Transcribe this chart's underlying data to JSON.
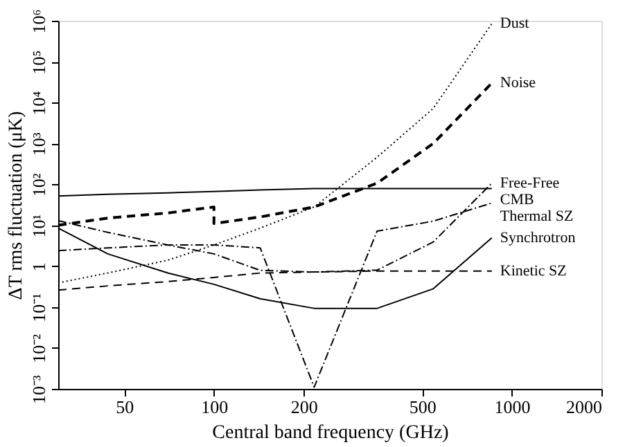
{
  "chart_data": {
    "type": "line",
    "xlabel": "Central band frequency (GHz)",
    "ylabel": "ΔT rms fluctuation (μK)",
    "log": "xy",
    "xlim": [
      30,
      2000
    ],
    "xticks": [
      50,
      100,
      200,
      500,
      1000,
      2000
    ],
    "ylim": [
      0.001,
      1000000
    ],
    "yticks": [
      {
        "value": 0.001,
        "label": "10⁻³"
      },
      {
        "value": 0.01,
        "label": "10⁻²"
      },
      {
        "value": 0.1,
        "label": "10⁻¹"
      },
      1,
      {
        "value": 10,
        "label": "10¹"
      },
      {
        "value": 100,
        "label": "10²"
      },
      {
        "value": 1000,
        "label": "10³"
      },
      {
        "value": 10000,
        "label": "10⁴"
      },
      {
        "value": 100000,
        "label": "10⁵"
      },
      {
        "value": 1000000,
        "label": "10⁶"
      }
    ],
    "grid": false,
    "marker": "none",
    "series": [
      {
        "name": "Dust",
        "color": "#000000",
        "line_style": "dotted",
        "x": [
          30,
          44,
          70,
          100,
          143,
          217,
          353,
          545,
          857
        ],
        "values": [
          0.39,
          0.68,
          1.4,
          3.3,
          8.5,
          28,
          460,
          7200,
          850000
        ]
      },
      {
        "name": "Noise",
        "color": "#000000",
        "line_style": "dashed",
        "x": [
          30,
          44,
          70,
          100,
          100,
          143,
          217,
          353,
          545,
          857
        ],
        "values": [
          10,
          15,
          20,
          28,
          11,
          16,
          28,
          107,
          1000,
          30000
        ]
      },
      {
        "name": "Free-Free",
        "color": "#000000",
        "line_style": "dashdot",
        "x": [
          30,
          44,
          70,
          100,
          143,
          217,
          353,
          545,
          857
        ],
        "values": [
          13,
          6.7,
          3.3,
          2.0,
          0.79,
          0.72,
          0.8,
          3.9,
          107
        ]
      },
      {
        "name": "CMB",
        "color": "#000000",
        "line_style": "solid",
        "x": [
          30,
          44,
          70,
          100,
          143,
          217,
          353,
          545,
          857
        ],
        "values": [
          52,
          57,
          62,
          67,
          73,
          79,
          79,
          79,
          79
        ]
      },
      {
        "name": "Thermal SZ",
        "color": "#000000",
        "line_style": "dashdot",
        "x": [
          30,
          44,
          70,
          100,
          143,
          217,
          353,
          545,
          857
        ],
        "values": [
          2.4,
          2.8,
          3.3,
          3.3,
          2.8,
          0.0011,
          7.2,
          12.6,
          35
        ]
      },
      {
        "name": "Synchrotron",
        "color": "#000000",
        "line_style": "solid",
        "x": [
          30,
          44,
          70,
          100,
          143,
          217,
          353,
          545,
          857
        ],
        "values": [
          8.5,
          2.0,
          0.68,
          0.36,
          0.16,
          0.093,
          0.093,
          0.28,
          4.9
        ]
      },
      {
        "name": "Kinetic SZ",
        "color": "#000000",
        "line_style": "dashed",
        "x": [
          30,
          44,
          70,
          100,
          143,
          217,
          353,
          545,
          857
        ],
        "values": [
          0.26,
          0.33,
          0.42,
          0.53,
          0.68,
          0.72,
          0.76,
          0.76,
          0.76
        ]
      }
    ]
  }
}
